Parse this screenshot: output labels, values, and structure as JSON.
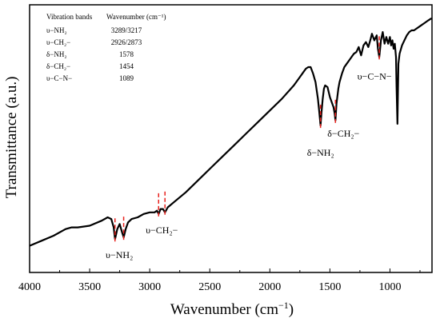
{
  "chart_data": {
    "type": "line",
    "xlabel": "Wavenumber (cm",
    "xlabel_sup": "−1",
    "xlabel_tail": ")",
    "ylabel": "Transmittance (a.u.)",
    "xlim": [
      4000,
      650
    ],
    "x_reversed": true,
    "y_ticks_shown": false,
    "x_ticks": [
      4000,
      3500,
      3000,
      2500,
      2000,
      1500,
      1000
    ],
    "x_tick_labels": [
      "4000",
      "3500",
      "3000",
      "2500",
      "2000",
      "1500",
      "1000"
    ],
    "grid": false,
    "line_color": "#000000",
    "marker_color": "#e8201c",
    "series": [
      {
        "x": [
          4000,
          3900,
          3800,
          3700,
          3650,
          3600,
          3500,
          3400,
          3350,
          3320,
          3300,
          3289,
          3270,
          3250,
          3230,
          3217,
          3200,
          3180,
          3150,
          3100,
          3050,
          3000,
          2960,
          2940,
          2926,
          2910,
          2890,
          2873,
          2850,
          2800,
          2700,
          2600,
          2500,
          2400,
          2300,
          2200,
          2100,
          2000,
          1900,
          1800,
          1750,
          1720,
          1700,
          1680,
          1660,
          1640,
          1620,
          1600,
          1590,
          1578,
          1570,
          1560,
          1550,
          1540,
          1520,
          1500,
          1490,
          1470,
          1460,
          1454,
          1445,
          1430,
          1420,
          1400,
          1380,
          1360,
          1340,
          1320,
          1300,
          1280,
          1260,
          1240,
          1220,
          1200,
          1180,
          1160,
          1150,
          1130,
          1110,
          1100,
          1089,
          1075,
          1060,
          1045,
          1030,
          1015,
          1000,
          990,
          980,
          970,
          960,
          950,
          945,
          938,
          930,
          920,
          900,
          880,
          860,
          840,
          820,
          800,
          780,
          760,
          740,
          720,
          700,
          680,
          660,
          650
        ],
        "y": [
          5,
          8,
          11,
          15,
          16,
          16,
          17,
          20,
          22,
          21,
          16,
          9,
          15,
          18,
          13,
          10,
          15,
          19,
          21,
          22,
          24,
          25,
          25,
          26,
          24,
          27,
          27,
          25,
          28,
          31,
          37,
          44,
          51,
          58,
          65,
          72,
          79,
          86,
          93,
          101,
          106,
          109,
          111,
          112,
          112,
          108,
          103,
          93,
          86,
          77,
          85,
          93,
          99,
          101,
          100,
          94,
          92,
          88,
          84,
          80,
          90,
          99,
          103,
          108,
          112,
          114,
          116,
          118,
          120,
          121,
          124,
          119,
          125,
          127,
          124,
          129,
          132,
          128,
          131,
          123,
          118,
          128,
          133,
          126,
          130,
          126,
          130,
          125,
          128,
          123,
          126,
          118,
          100,
          78,
          114,
          120,
          125,
          128,
          131,
          133,
          134,
          134,
          135,
          136,
          137,
          138,
          139,
          140,
          141,
          141
        ]
      }
    ],
    "legend_table": {
      "header": [
        "Vibration bands",
        "Wavenumber (cm⁻¹)"
      ],
      "rows": [
        [
          "υ−NH₂",
          "3289/3217"
        ],
        [
          "υ−CH₂−",
          "2926/2873"
        ],
        [
          "δ−NH₂",
          "1578"
        ],
        [
          "δ−CH₂−",
          "1454"
        ],
        [
          "υ−C−N−",
          "1089"
        ]
      ]
    },
    "annotations": [
      {
        "text": "υ−NH₂",
        "x": [
          3289,
          3217
        ]
      },
      {
        "text": "υ−CH₂−",
        "x": [
          2926,
          2873
        ]
      },
      {
        "text": "δ−NH₂",
        "x": [
          1578
        ]
      },
      {
        "text": "δ−CH₂−",
        "x": [
          1454
        ]
      },
      {
        "text": "υ−C−N−",
        "x": [
          1089
        ]
      }
    ]
  }
}
